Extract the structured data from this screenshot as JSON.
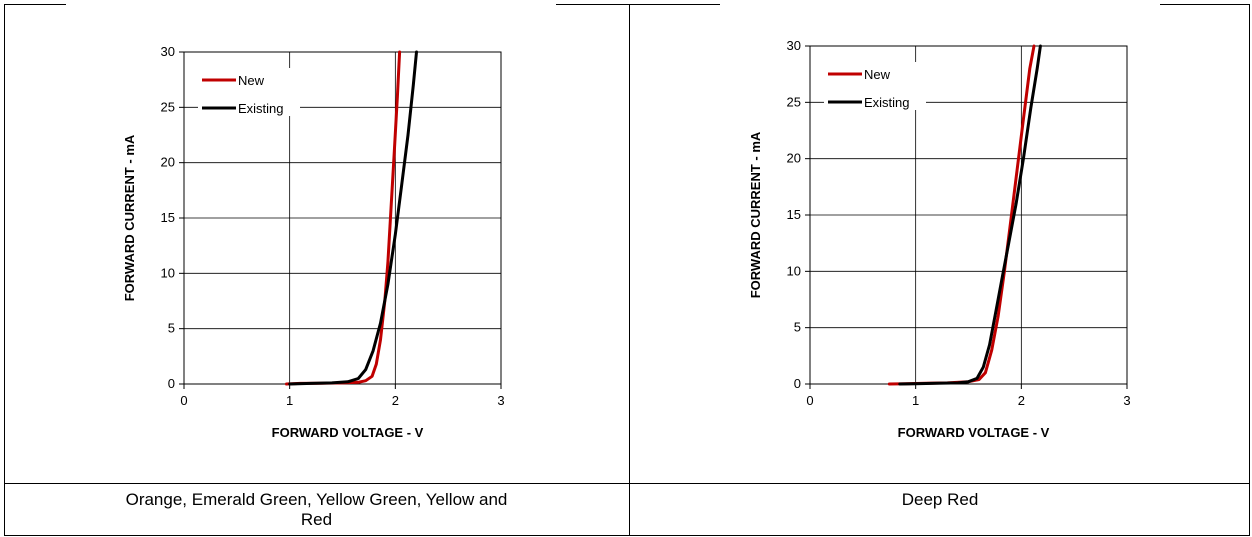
{
  "captions": {
    "left": "Orange, Emerald Green, Yellow Green, Yellow and Red",
    "right": "Deep Red"
  },
  "colors": {
    "new": "#c00000",
    "existing": "#000000",
    "grid": "#000000"
  },
  "chart_data": [
    {
      "type": "line",
      "xlabel": "FORWARD VOLTAGE - V",
      "ylabel": "FORWARD CURRENT - mA",
      "xlim": [
        0,
        3
      ],
      "ylim": [
        0,
        30
      ],
      "xticks": [
        "0",
        "1",
        "2",
        "3"
      ],
      "yticks": [
        "0",
        "5",
        "10",
        "15",
        "20",
        "25",
        "30"
      ],
      "grid": true,
      "legend": "top-left",
      "series": [
        {
          "name": "New",
          "color": "#c00000",
          "x": [
            0.97,
            1.1,
            1.3,
            1.5,
            1.65,
            1.72,
            1.78,
            1.82,
            1.86,
            1.9,
            1.93,
            1.96,
            1.99,
            2.02,
            2.04
          ],
          "y": [
            0,
            0.05,
            0.07,
            0.1,
            0.15,
            0.3,
            0.7,
            1.8,
            4,
            7.5,
            11,
            16,
            21,
            26,
            30
          ]
        },
        {
          "name": "Existing",
          "color": "#000000",
          "x": [
            1.0,
            1.2,
            1.4,
            1.55,
            1.65,
            1.72,
            1.79,
            1.86,
            1.93,
            2.0,
            2.06,
            2.12,
            2.17,
            2.2
          ],
          "y": [
            0,
            0.05,
            0.1,
            0.2,
            0.5,
            1.3,
            3,
            5.5,
            9,
            13.5,
            18,
            22.5,
            27,
            30
          ]
        }
      ]
    },
    {
      "type": "line",
      "xlabel": "FORWARD VOLTAGE - V",
      "ylabel": "FORWARD CURRENT - mA",
      "xlim": [
        0,
        3
      ],
      "ylim": [
        0,
        30
      ],
      "xticks": [
        "0",
        "1",
        "2",
        "3"
      ],
      "yticks": [
        "0",
        "5",
        "10",
        "15",
        "20",
        "25",
        "30"
      ],
      "grid": true,
      "legend": "top-left",
      "series": [
        {
          "name": "New",
          "color": "#c00000",
          "x": [
            0.75,
            0.9,
            1.1,
            1.3,
            1.5,
            1.6,
            1.66,
            1.72,
            1.78,
            1.84,
            1.9,
            1.96,
            2.02,
            2.08,
            2.12
          ],
          "y": [
            0,
            0.03,
            0.06,
            0.1,
            0.2,
            0.4,
            1,
            3,
            6,
            10,
            14.5,
            19,
            23.5,
            28,
            30
          ]
        },
        {
          "name": "Existing",
          "color": "#000000",
          "x": [
            0.85,
            1.0,
            1.2,
            1.4,
            1.5,
            1.58,
            1.64,
            1.7,
            1.76,
            1.82,
            1.88,
            1.95,
            2.02,
            2.09,
            2.15,
            2.18
          ],
          "y": [
            0,
            0.03,
            0.06,
            0.1,
            0.2,
            0.5,
            1.5,
            3.5,
            6.5,
            9.5,
            12.5,
            16,
            20,
            24.5,
            28,
            30
          ]
        }
      ]
    }
  ]
}
